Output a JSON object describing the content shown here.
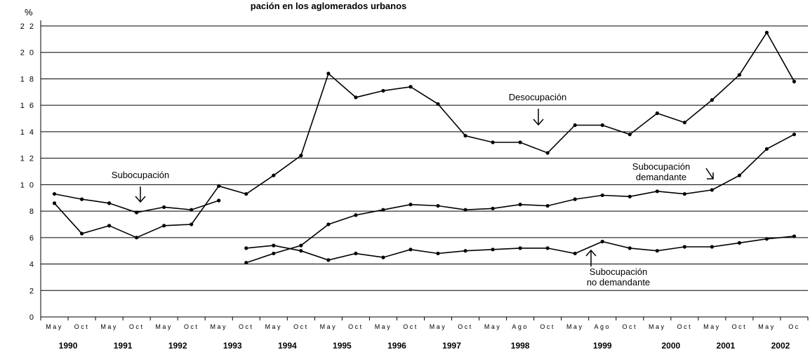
{
  "chart_data": {
    "type": "line",
    "title": "pación en los aglomerados urbanos",
    "ylabel": "%",
    "ylim": [
      0,
      22
    ],
    "yticks": [
      "0",
      "2",
      "4",
      "6",
      "8",
      "1 0",
      "1 2",
      "1 4",
      "1 6",
      "1 8",
      "2 0",
      "2 2"
    ],
    "grid": true,
    "x": [
      "May",
      "Oct",
      "May",
      "Oct",
      "May",
      "Oct",
      "May",
      "Oct",
      "May",
      "Oct",
      "May",
      "Oct",
      "May",
      "Oct",
      "May",
      "Oct",
      "May",
      "Ago",
      "Oct",
      "May",
      "Ago",
      "Oct",
      "May",
      "Oct",
      "May",
      "Oct",
      "May",
      "Oc"
    ],
    "years": [
      {
        "label": "1990",
        "index": 0.5
      },
      {
        "label": "1991",
        "index": 2.5
      },
      {
        "label": "1992",
        "index": 4.5
      },
      {
        "label": "1993",
        "index": 6.5
      },
      {
        "label": "1994",
        "index": 8.5
      },
      {
        "label": "1995",
        "index": 10.5
      },
      {
        "label": "1996",
        "index": 12.5
      },
      {
        "label": "1997",
        "index": 14.5
      },
      {
        "label": "1998",
        "index": 17.0
      },
      {
        "label": "1999",
        "index": 20.0
      },
      {
        "label": "2000",
        "index": 22.5
      },
      {
        "label": "2001",
        "index": 24.5
      },
      {
        "label": "2002",
        "index": 26.5
      }
    ],
    "series": [
      {
        "name": "Desocupación",
        "segments": [
          {
            "start": 0,
            "values": [
              8.6,
              6.3,
              6.9,
              6.0,
              6.9,
              7.0,
              9.9,
              9.3,
              10.7,
              12.2,
              18.4,
              16.6,
              17.1,
              17.4,
              16.1,
              13.7,
              13.2,
              13.2,
              12.4,
              14.5,
              14.5,
              13.8,
              15.4,
              14.7,
              16.4,
              18.3,
              21.5,
              17.8
            ]
          }
        ]
      },
      {
        "name": "Subocupación",
        "segments": [
          {
            "start": 0,
            "values": [
              9.3,
              8.9,
              8.6,
              7.9,
              8.3,
              8.1,
              8.8
            ]
          },
          {
            "start": 7,
            "values": [
              5.2,
              5.4,
              5.0,
              4.3,
              4.8,
              4.5,
              5.1,
              4.8,
              5.0,
              5.1,
              5.2,
              5.2,
              4.8,
              5.7,
              5.2,
              5.0,
              5.3,
              5.3,
              5.6,
              5.9,
              6.1
            ]
          }
        ]
      },
      {
        "name": "Subocupación demandante",
        "segments": [
          {
            "start": 7,
            "values": [
              4.1,
              4.8,
              5.4,
              7.0,
              7.7,
              8.1,
              8.5,
              8.4,
              8.1,
              8.2,
              8.5,
              8.4,
              8.9,
              9.2,
              9.1,
              9.5,
              9.3,
              9.6,
              10.7,
              12.7,
              13.8
            ]
          }
        ]
      }
    ],
    "annotations": [
      {
        "lines": [
          "Subocupación"
        ],
        "arrow": "down"
      },
      {
        "lines": [
          "Desocupación"
        ],
        "arrow": "down"
      },
      {
        "lines": [
          "Subocupación",
          "demandante"
        ],
        "arrow": "down-right"
      },
      {
        "lines": [
          "Subocupación",
          "no demandante"
        ],
        "arrow": "up"
      }
    ]
  }
}
